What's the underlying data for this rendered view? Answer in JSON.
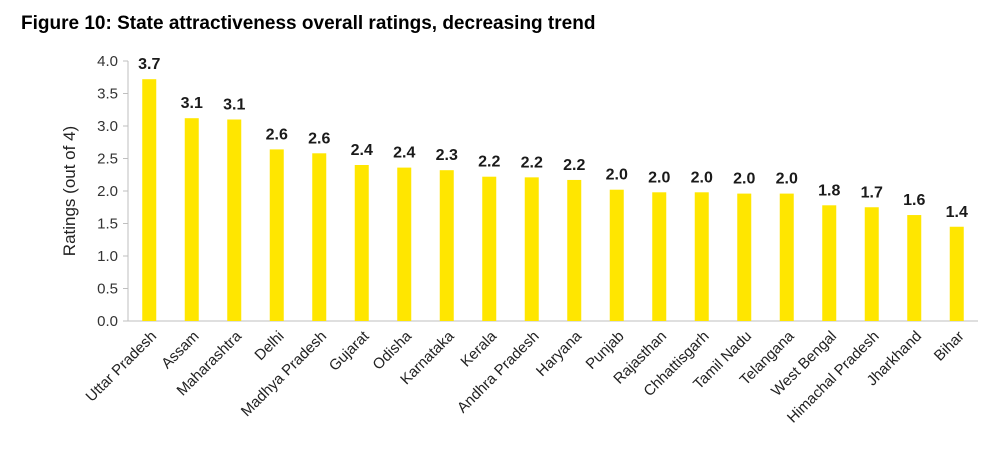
{
  "chart_data": {
    "type": "bar",
    "title": "Figure 10: State attractiveness overall ratings, decreasing trend",
    "xlabel": "",
    "ylabel": "Ratings (out of 4)",
    "ylim": [
      0,
      4
    ],
    "yticks": [
      "0.0",
      "0.5",
      "1.0",
      "1.5",
      "2.0",
      "2.5",
      "3.0",
      "3.5",
      "4.0"
    ],
    "categories": [
      "Uttar Pradesh",
      "Assam",
      "Maharashtra",
      "Delhi",
      "Madhya Pradesh",
      "Gujarat",
      "Odisha",
      "Karnataka",
      "Kerala",
      "Andhra Pradesh",
      "Haryana",
      "Punjab",
      "Rajasthan",
      "Chhattisgarh",
      "Tamil Nadu",
      "Telangana",
      "West Bengal",
      "Himachal Pradesh",
      "Jharkhand",
      "Bihar"
    ],
    "values": [
      3.72,
      3.12,
      3.1,
      2.64,
      2.58,
      2.4,
      2.36,
      2.32,
      2.22,
      2.21,
      2.17,
      2.02,
      1.98,
      1.98,
      1.96,
      1.96,
      1.78,
      1.75,
      1.63,
      1.45
    ],
    "data_labels": [
      "3.7",
      "3.1",
      "3.1",
      "2.6",
      "2.6",
      "2.4",
      "2.4",
      "2.3",
      "2.2",
      "2.2",
      "2.2",
      "2.0",
      "2.0",
      "2.0",
      "2.0",
      "2.0",
      "1.8",
      "1.7",
      "1.6",
      "1.4"
    ],
    "colors": {
      "bar": "#FFE600",
      "axis": "#bfbfbf",
      "text": "#222222"
    },
    "grid": false,
    "legend": "none"
  }
}
